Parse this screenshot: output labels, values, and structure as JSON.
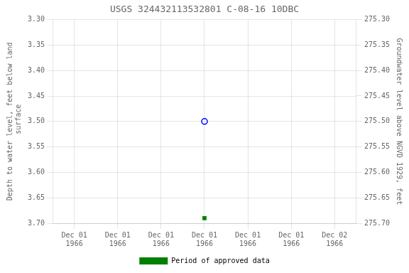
{
  "chart_data": {
    "type": "scatter",
    "title": "USGS 324432113532801 C-08-16 10DBC",
    "y_label": "Depth to water level, feet below land\n surface",
    "y2_label": "Groundwater level above NGVD 1929, feet",
    "categories": [
      "Dec 01\n1966",
      "Dec 01\n1966",
      "Dec 01\n1966",
      "Dec 01\n1966",
      "Dec 01\n1966",
      "Dec 01\n1966",
      "Dec 02\n1966"
    ],
    "series": [
      {
        "color": "#0000ff",
        "marker": "open_circle",
        "values": [
          null,
          null,
          null,
          3.5,
          null,
          null,
          null
        ]
      },
      {
        "name": "Period of approved data",
        "color": "#008000",
        "marker": "square",
        "values": [
          null,
          null,
          null,
          3.69,
          null,
          null,
          null
        ]
      }
    ],
    "ylim": [
      3.7,
      3.3
    ],
    "yticks": [
      {
        "value": 3.3,
        "label": "3.30"
      },
      3.35,
      {
        "value": 3.4,
        "label": "3.40"
      },
      3.45,
      {
        "value": 3.5,
        "label": "3.50"
      },
      3.55,
      {
        "value": 3.6,
        "label": "3.60"
      },
      3.65,
      {
        "value": 3.7,
        "label": "3.70"
      }
    ],
    "y2lim": [
      275.7,
      275.3
    ],
    "y2ticks": [
      {
        "value": 275.7,
        "label": "275.70"
      },
      275.65,
      {
        "value": 275.6,
        "label": "275.60"
      },
      275.55,
      {
        "value": 275.5,
        "label": "275.50"
      },
      275.45,
      {
        "value": 275.4,
        "label": "275.40"
      },
      275.35,
      {
        "value": 275.3,
        "label": "275.30"
      }
    ],
    "grid": true,
    "legend": "bottom"
  }
}
